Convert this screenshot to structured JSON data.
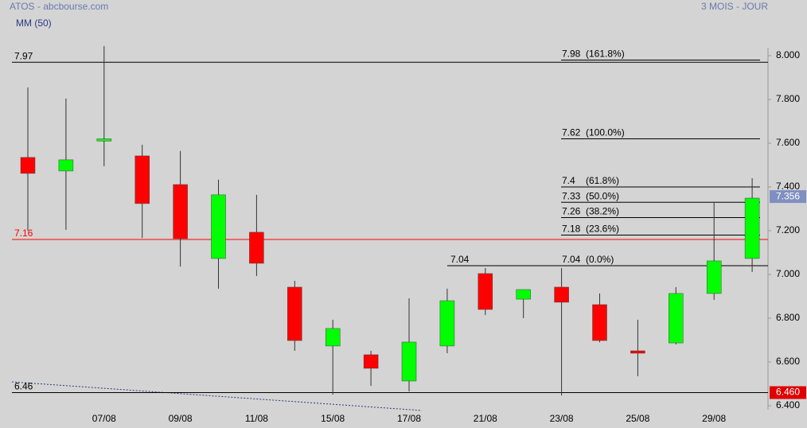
{
  "chart_data": {
    "type": "candlestick",
    "title": "ATOS - abcbourse.com",
    "subtitle": "MM (50)",
    "period": "3 MOIS - JOUR",
    "categories": [
      null,
      null,
      "07/08",
      null,
      "09/08",
      null,
      "11/08",
      null,
      "15/08",
      null,
      "17/08",
      null,
      "21/08",
      null,
      "23/08",
      null,
      "25/08",
      null,
      "29/08",
      null
    ],
    "open": [
      7.535,
      7.473,
      7.61,
      7.542,
      7.411,
      7.073,
      7.193,
      6.942,
      6.673,
      6.633,
      6.513,
      6.673,
      7.004,
      6.887,
      6.942,
      6.862,
      6.651,
      6.687,
      6.913,
      7.073
    ],
    "high": [
      7.855,
      7.804,
      8.044,
      7.593,
      7.564,
      7.433,
      7.364,
      6.971,
      6.793,
      6.651,
      6.891,
      6.935,
      7.029,
      6.931,
      7.029,
      6.913,
      6.793,
      6.942,
      7.327,
      7.44
    ],
    "low": [
      7.2,
      7.204,
      7.495,
      7.167,
      7.036,
      6.935,
      6.993,
      6.651,
      6.451,
      6.491,
      6.465,
      6.64,
      6.815,
      6.8,
      6.447,
      6.69,
      6.535,
      6.68,
      6.884,
      7.011
    ],
    "close": [
      7.462,
      7.524,
      7.62,
      7.324,
      7.164,
      7.364,
      7.051,
      6.698,
      6.753,
      6.571,
      6.691,
      6.88,
      6.84,
      6.931,
      6.873,
      6.698,
      6.64,
      6.913,
      7.062,
      7.349
    ],
    "up_color": "#00ff00",
    "down_color": "#ff0000",
    "ylim": [
      6.4,
      8.0
    ],
    "yticks": [
      {
        "value": 6.4,
        "label": "6.400"
      },
      {
        "value": 6.6,
        "label": "6.600"
      },
      {
        "value": 6.8,
        "label": "6.800"
      },
      {
        "value": 7.0,
        "label": "7.000"
      },
      {
        "value": 7.2,
        "label": "7.200"
      },
      {
        "value": 7.4,
        "label": "7.400"
      },
      {
        "value": 7.6,
        "label": "7.600"
      },
      {
        "value": 7.8,
        "label": "7.800"
      },
      {
        "value": 8.0,
        "label": "8.000"
      }
    ],
    "levels": [
      {
        "value": 7.97,
        "color": "#000000"
      },
      {
        "value": 7.16,
        "color": "#ff0000"
      },
      {
        "value": 6.46,
        "color": "#000000"
      }
    ],
    "swing_low": 7.04,
    "fibonacci": [
      {
        "value": 7.98,
        "ratio": "(161.8%)"
      },
      {
        "value": 7.62,
        "ratio": "(100.0%)"
      },
      {
        "value": 7.4,
        "ratio": "(61.8%)"
      },
      {
        "value": 7.33,
        "ratio": "(50.0%)"
      },
      {
        "value": 7.26,
        "ratio": "(38.2%)"
      },
      {
        "value": 7.18,
        "ratio": "(23.6%)"
      },
      {
        "value": 7.04,
        "ratio": "(0.0%)"
      }
    ],
    "badges": [
      {
        "value": 7.356,
        "color": "#7f8fc0"
      },
      {
        "value": 6.46,
        "label": "6.460",
        "color": "#e00000"
      }
    ]
  }
}
